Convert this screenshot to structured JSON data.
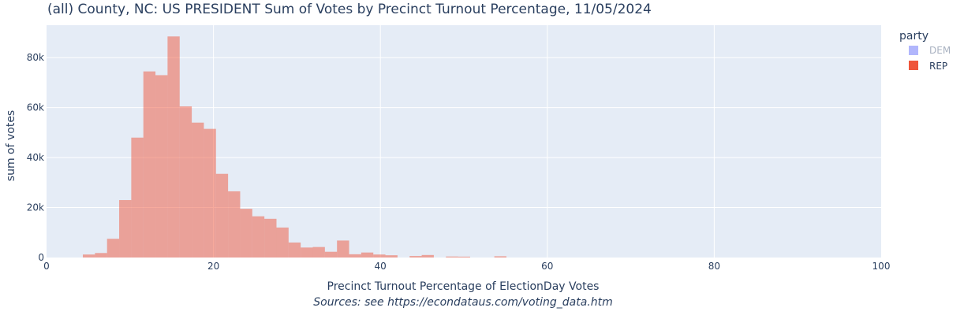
{
  "chart_data": {
    "type": "bar",
    "title": "(all) County, NC: US PRESIDENT Sum of Votes by Precinct Turnout Percentage, 11/05/2024",
    "xlabel": "Precinct Turnout Percentage of ElectionDay Votes",
    "ylabel": "sum of votes",
    "source_note": "Sources: see https://econdataus.com/voting_data.htm",
    "xlim": [
      0,
      100
    ],
    "ylim": [
      0,
      93000
    ],
    "x_ticks": [
      0,
      20,
      40,
      60,
      80,
      100
    ],
    "x_tick_labels": [
      "0",
      "20",
      "40",
      "60",
      "80",
      "100"
    ],
    "y_ticks": [
      0,
      20000,
      40000,
      60000,
      80000
    ],
    "y_tick_labels": [
      "0",
      "20k",
      "40k",
      "60k",
      "80k"
    ],
    "bin_width": 1.45,
    "grid": true,
    "legend": {
      "title": "party",
      "placement": "top-right",
      "items": [
        {
          "name": "DEM",
          "color": "#636efa",
          "visible": false
        },
        {
          "name": "REP",
          "color": "#ef553b",
          "visible": true
        }
      ]
    },
    "series": [
      {
        "name": "REP",
        "color": "#ef553b",
        "bins": [
          {
            "x0": 4.35,
            "value": 1200
          },
          {
            "x0": 5.8,
            "value": 1800
          },
          {
            "x0": 7.25,
            "value": 7500
          },
          {
            "x0": 8.7,
            "value": 23000
          },
          {
            "x0": 10.15,
            "value": 48000
          },
          {
            "x0": 11.6,
            "value": 74500
          },
          {
            "x0": 13.05,
            "value": 73000
          },
          {
            "x0": 14.5,
            "value": 88500
          },
          {
            "x0": 15.95,
            "value": 60500
          },
          {
            "x0": 17.4,
            "value": 54000
          },
          {
            "x0": 18.85,
            "value": 51500
          },
          {
            "x0": 20.3,
            "value": 33500
          },
          {
            "x0": 21.75,
            "value": 26500
          },
          {
            "x0": 23.2,
            "value": 19500
          },
          {
            "x0": 24.65,
            "value": 16500
          },
          {
            "x0": 26.1,
            "value": 15500
          },
          {
            "x0": 27.55,
            "value": 12000
          },
          {
            "x0": 29.0,
            "value": 6000
          },
          {
            "x0": 30.45,
            "value": 4000
          },
          {
            "x0": 31.9,
            "value": 4200
          },
          {
            "x0": 33.35,
            "value": 2300
          },
          {
            "x0": 34.8,
            "value": 6800
          },
          {
            "x0": 36.25,
            "value": 1300
          },
          {
            "x0": 37.7,
            "value": 2000
          },
          {
            "x0": 39.15,
            "value": 1200
          },
          {
            "x0": 40.6,
            "value": 900
          },
          {
            "x0": 43.5,
            "value": 600
          },
          {
            "x0": 44.95,
            "value": 1000
          },
          {
            "x0": 47.85,
            "value": 400
          },
          {
            "x0": 49.3,
            "value": 350
          },
          {
            "x0": 53.65,
            "value": 500
          }
        ]
      }
    ]
  }
}
